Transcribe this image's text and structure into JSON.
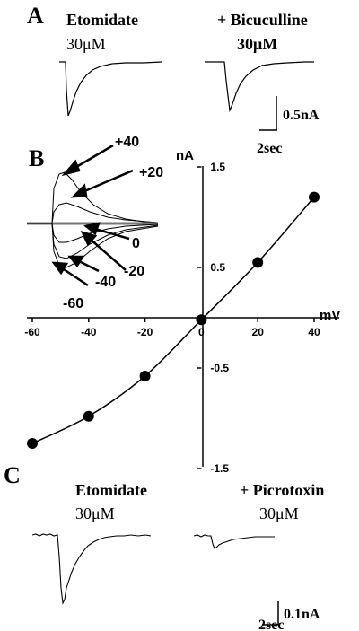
{
  "panels": {
    "A": {
      "letter": "A",
      "left": {
        "drug": "Etomidate",
        "conc": "30μM",
        "peak_nA": -0.62
      },
      "right": {
        "drug": "+ Bicuculline",
        "conc": "30μM",
        "peak_nA": -0.36
      },
      "scale": {
        "current": "0.5nA",
        "time": "2sec"
      }
    },
    "B": {
      "letter": "B",
      "inset_trace_labels": [
        "+40",
        "+20",
        "0",
        "-20",
        "-40",
        "-60"
      ]
    },
    "C": {
      "letter": "C",
      "left": {
        "drug": "Etomidate",
        "conc": "30μM",
        "peak_nA": -0.33
      },
      "right": {
        "drug": "+ Picrotoxin",
        "conc": "30μM",
        "peak_nA": -0.08
      },
      "scale": {
        "current": "0.1nA",
        "time": "2sec"
      }
    }
  },
  "chart_data": {
    "type": "scatter",
    "title": "",
    "x": [
      -60,
      -40,
      -20,
      0,
      20,
      40
    ],
    "y": [
      -1.25,
      -0.98,
      -0.58,
      -0.02,
      0.55,
      1.2
    ],
    "xlabel": "mV",
    "ylabel": "nA",
    "xlim": [
      -60,
      40
    ],
    "ylim": [
      -1.5,
      1.5
    ],
    "xticks": [
      "-60",
      "-40",
      "-20",
      "0",
      "20",
      "40"
    ],
    "yticks": [
      "1.5",
      "0.5",
      "-0.5",
      "-1.5"
    ],
    "ytick_values": [
      1.5,
      0.5,
      -0.5,
      -1.5
    ],
    "fit_line": true,
    "grid": false,
    "marker_color": "#000000"
  }
}
